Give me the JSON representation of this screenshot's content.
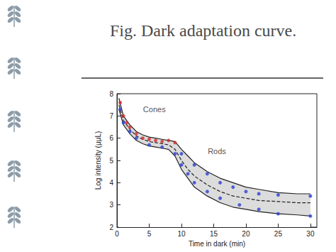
{
  "chart_data": {
    "type": "line",
    "title": "Fig. Dark adaptation curve.",
    "x_label": "Time in dark (min)",
    "y_label": "Log intensity (μμL)",
    "xlim": [
      0,
      31
    ],
    "xticks": [
      0,
      5,
      10,
      15,
      20,
      25,
      30
    ],
    "ylim": [
      2,
      8
    ],
    "yticks": [
      2,
      3,
      4,
      5,
      6,
      7,
      8
    ],
    "grid": false,
    "annotations": [
      {
        "text": "Cones",
        "x": 5.8,
        "y": 7.3
      },
      {
        "text": "Rods",
        "x": 15.5,
        "y": 5.4
      }
    ],
    "series": [
      {
        "type": "line",
        "line_style": "solid",
        "color": "#222222",
        "x": [
          0.3,
          1,
          2,
          3,
          4,
          5,
          6,
          7,
          8,
          9,
          10,
          11,
          12,
          14,
          16,
          18,
          20,
          22,
          25,
          28,
          30
        ],
        "values": [
          7.8,
          7.0,
          6.6,
          6.3,
          6.15,
          6.05,
          6.0,
          5.95,
          5.9,
          5.85,
          5.5,
          5.2,
          4.9,
          4.5,
          4.2,
          4.0,
          3.8,
          3.7,
          3.55,
          3.5,
          3.5
        ]
      },
      {
        "type": "line",
        "line_style": "dashed",
        "color": "#222222",
        "x": [
          0.3,
          1,
          2,
          3,
          4,
          5,
          6,
          7,
          8,
          9,
          10,
          11,
          12,
          14,
          16,
          18,
          20,
          22,
          25,
          28,
          30
        ],
        "values": [
          7.5,
          6.8,
          6.4,
          6.1,
          5.95,
          5.85,
          5.8,
          5.75,
          5.7,
          5.5,
          5.0,
          4.6,
          4.3,
          3.9,
          3.6,
          3.4,
          3.3,
          3.2,
          3.15,
          3.1,
          3.1
        ]
      },
      {
        "type": "line",
        "line_style": "solid",
        "color": "#222222",
        "x": [
          0.3,
          1,
          2,
          3,
          4,
          5,
          6,
          7,
          8,
          9,
          10,
          11,
          12,
          14,
          16,
          18,
          20,
          22,
          25,
          28,
          30
        ],
        "values": [
          7.3,
          6.6,
          6.2,
          5.9,
          5.75,
          5.65,
          5.6,
          5.55,
          5.5,
          5.2,
          4.6,
          4.2,
          3.8,
          3.4,
          3.1,
          2.9,
          2.8,
          2.7,
          2.6,
          2.55,
          2.5
        ]
      },
      {
        "type": "scatter",
        "marker": "circle",
        "color": "#d22b2b",
        "x": [
          0.5,
          1,
          1.5,
          2,
          3,
          4,
          5,
          6,
          7,
          8,
          9
        ],
        "values": [
          7.6,
          7.0,
          6.7,
          6.5,
          6.2,
          6.0,
          5.95,
          5.9,
          5.85,
          5.9,
          5.8
        ]
      },
      {
        "type": "scatter",
        "marker": "circle",
        "color": "#2b3fd2",
        "x": [
          0.5,
          1,
          2,
          3,
          5,
          7,
          9,
          10,
          11,
          12,
          14,
          16,
          19,
          22,
          25,
          30,
          10,
          12,
          14,
          16,
          18,
          20,
          22,
          25,
          30
        ],
        "values": [
          7.3,
          6.7,
          6.3,
          6.0,
          5.7,
          5.6,
          5.3,
          4.8,
          4.4,
          4.0,
          3.6,
          3.3,
          3.0,
          2.8,
          2.6,
          2.5,
          5.3,
          4.8,
          4.4,
          4.0,
          3.8,
          3.6,
          3.5,
          3.45,
          3.4
        ]
      }
    ]
  }
}
